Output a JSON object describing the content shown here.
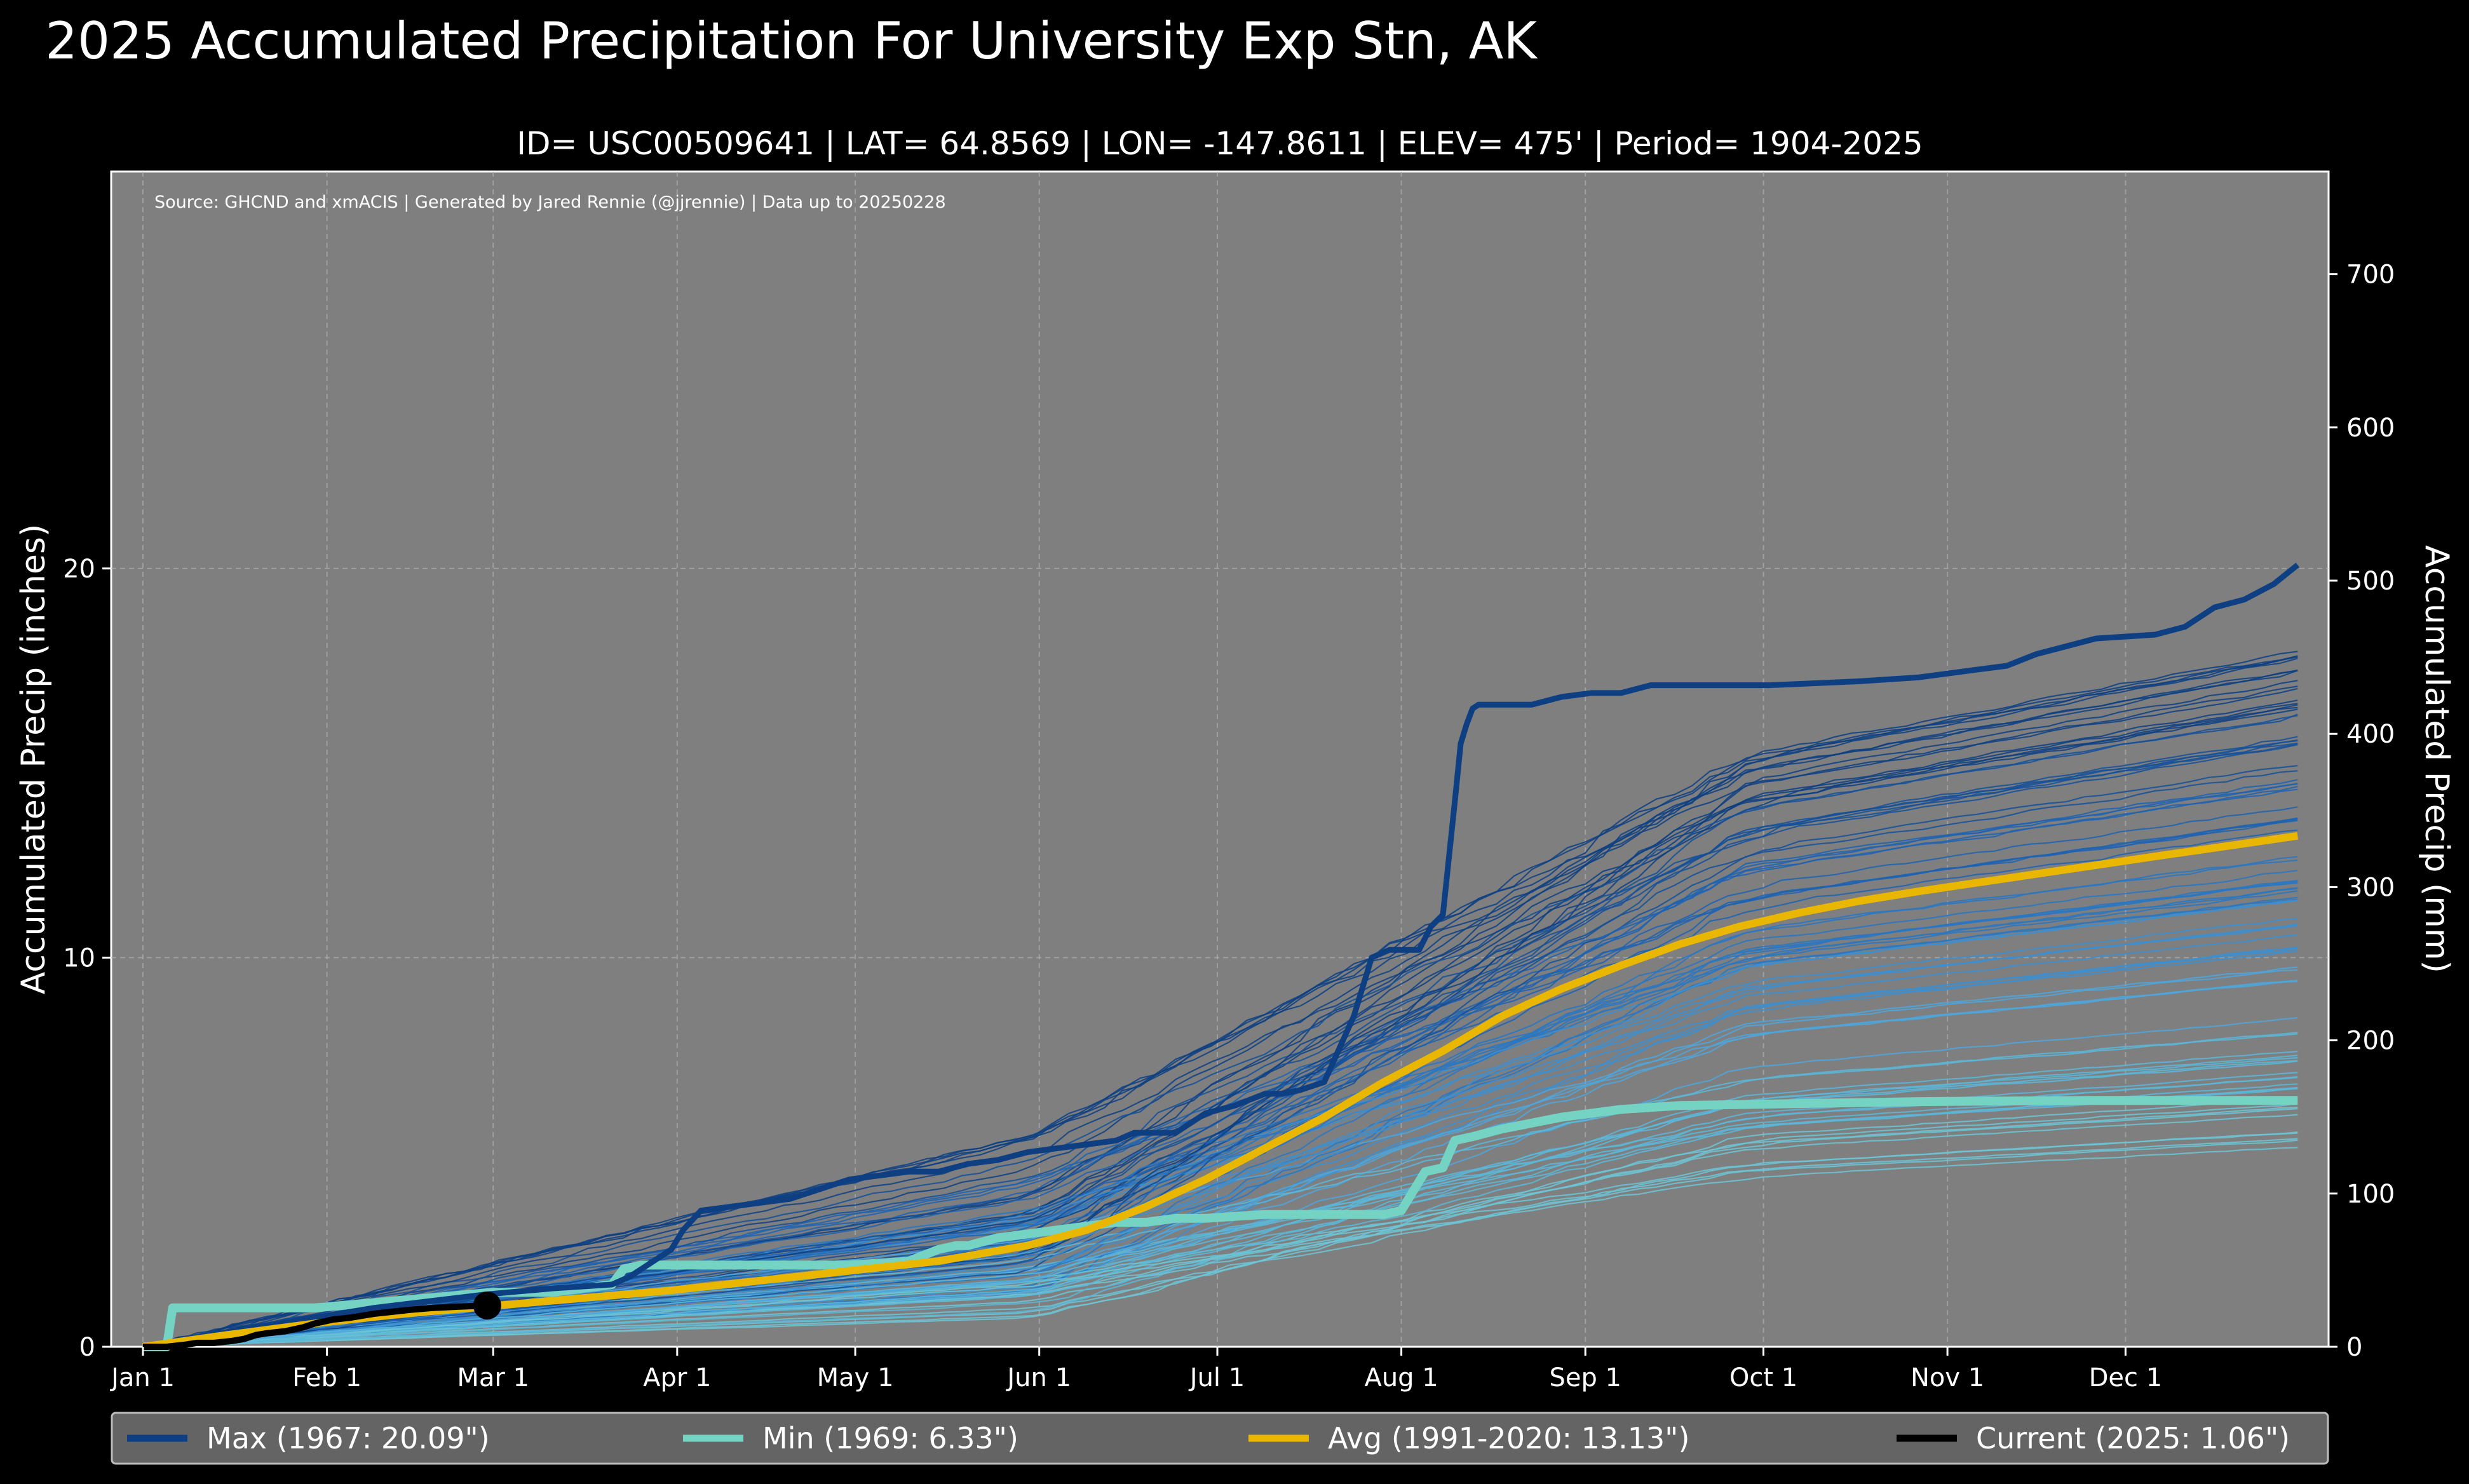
{
  "chart_data": {
    "type": "line",
    "title": "2025 Accumulated Precipitation For University Exp Stn, AK",
    "subtitle": "ID= USC00509641 | LAT= 64.8569 | LON= -147.8611 | ELEV= 475' | Period= 1904-2025",
    "source_note": "Source: GHCND and xmACIS | Generated by Jared Rennie (@jjrennie) | Data up to 20250228",
    "ylabel": "Accumulated Precip (inches)",
    "y2label": "Accumulated Precip (mm)",
    "xlabel": "",
    "xlim": [
      1,
      366
    ],
    "ylim": [
      0,
      30.2
    ],
    "y2lim": [
      0,
      767
    ],
    "x_ticks": [
      {
        "day": 1,
        "label": "Jan 1"
      },
      {
        "day": 32,
        "label": "Feb 1"
      },
      {
        "day": 60,
        "label": "Mar 1"
      },
      {
        "day": 91,
        "label": "Apr 1"
      },
      {
        "day": 121,
        "label": "May 1"
      },
      {
        "day": 152,
        "label": "Jun 1"
      },
      {
        "day": 182,
        "label": "Jul 1"
      },
      {
        "day": 213,
        "label": "Aug 1"
      },
      {
        "day": 244,
        "label": "Sep 1"
      },
      {
        "day": 274,
        "label": "Oct 1"
      },
      {
        "day": 305,
        "label": "Nov 1"
      },
      {
        "day": 335,
        "label": "Dec 1"
      }
    ],
    "y_ticks": [
      {
        "value": 0,
        "label": "0"
      },
      {
        "value": 10,
        "label": "10"
      },
      {
        "value": 20,
        "label": "20"
      }
    ],
    "y2_ticks": [
      {
        "value": 0,
        "label": "0"
      },
      {
        "value": 100,
        "label": "100"
      },
      {
        "value": 200,
        "label": "200"
      },
      {
        "value": 300,
        "label": "300"
      },
      {
        "value": 400,
        "label": "400"
      },
      {
        "value": 500,
        "label": "500"
      },
      {
        "value": 600,
        "label": "600"
      },
      {
        "value": 700,
        "label": "700"
      }
    ],
    "grid": true,
    "legend_position": "bottom",
    "series": [
      {
        "name": "Max (1967:  20.09\")",
        "color": "#0d3f82",
        "x": [
          1,
          20,
          40,
          59,
          70,
          80,
          83,
          90,
          92,
          95,
          100,
          110,
          120,
          130,
          135,
          140,
          145,
          150,
          160,
          165,
          168,
          175,
          180,
          185,
          190,
          193,
          196,
          200,
          205,
          208,
          211,
          214,
          216,
          218,
          220,
          222,
          223,
          224,
          225,
          226,
          228,
          230,
          235,
          240,
          245,
          250,
          255,
          265,
          275,
          290,
          300,
          310,
          315,
          320,
          325,
          330,
          340,
          345,
          350,
          355,
          360,
          364
        ],
        "y": [
          0,
          0.5,
          1.0,
          1.35,
          1.5,
          1.6,
          1.8,
          2.5,
          3.0,
          3.5,
          3.6,
          3.8,
          4.3,
          4.5,
          4.5,
          4.7,
          4.8,
          5.0,
          5.2,
          5.3,
          5.5,
          5.5,
          6.0,
          6.2,
          6.5,
          6.5,
          6.6,
          6.8,
          8.5,
          10.0,
          10.2,
          10.2,
          10.2,
          10.8,
          11.1,
          14.0,
          15.5,
          16.0,
          16.4,
          16.5,
          16.5,
          16.5,
          16.5,
          16.7,
          16.8,
          16.8,
          17.0,
          17.0,
          17.0,
          17.1,
          17.2,
          17.4,
          17.5,
          17.8,
          18.0,
          18.2,
          18.3,
          18.5,
          19.0,
          19.2,
          19.6,
          20.09
        ]
      },
      {
        "name": "Min (1969:   6.33\")",
        "color": "#74d3c3",
        "x": [
          1,
          5,
          6,
          30,
          60,
          70,
          80,
          82,
          85,
          100,
          120,
          130,
          135,
          138,
          140,
          145,
          150,
          155,
          160,
          165,
          170,
          175,
          180,
          190,
          200,
          210,
          213,
          215,
          217,
          220,
          222,
          225,
          230,
          240,
          250,
          260,
          300,
          330,
          364
        ],
        "y": [
          0,
          0,
          1.0,
          1.0,
          1.4,
          1.4,
          1.6,
          2.0,
          2.1,
          2.1,
          2.1,
          2.2,
          2.5,
          2.6,
          2.6,
          2.8,
          2.9,
          3.0,
          3.1,
          3.2,
          3.2,
          3.3,
          3.3,
          3.4,
          3.4,
          3.4,
          3.5,
          4.0,
          4.5,
          4.6,
          5.3,
          5.4,
          5.6,
          5.9,
          6.1,
          6.2,
          6.3,
          6.33,
          6.33
        ]
      },
      {
        "name": "Avg (1991-2020:  13.13\")",
        "color": "#eab700",
        "x": [
          1,
          15,
          30,
          45,
          60,
          75,
          90,
          105,
          120,
          135,
          150,
          160,
          170,
          180,
          190,
          200,
          210,
          220,
          230,
          240,
          250,
          260,
          270,
          280,
          290,
          300,
          320,
          340,
          364
        ],
        "y": [
          0,
          0.3,
          0.6,
          0.85,
          1.05,
          1.25,
          1.45,
          1.7,
          1.95,
          2.2,
          2.6,
          3.0,
          3.6,
          4.3,
          5.1,
          5.9,
          6.8,
          7.6,
          8.5,
          9.2,
          9.8,
          10.35,
          10.8,
          11.15,
          11.45,
          11.7,
          12.15,
          12.6,
          13.13
        ]
      },
      {
        "name": "Current (2025:   1.06\")",
        "color": "#000000",
        "x": [
          1,
          5,
          8,
          10,
          13,
          16,
          18,
          20,
          22,
          25,
          28,
          30,
          33,
          36,
          38,
          40,
          43,
          46,
          50,
          54,
          57,
          59
        ],
        "y": [
          0,
          0,
          0.05,
          0.1,
          0.1,
          0.15,
          0.2,
          0.3,
          0.35,
          0.4,
          0.5,
          0.6,
          0.7,
          0.75,
          0.8,
          0.85,
          0.9,
          0.95,
          1.0,
          1.03,
          1.05,
          1.06
        ]
      }
    ]
  }
}
